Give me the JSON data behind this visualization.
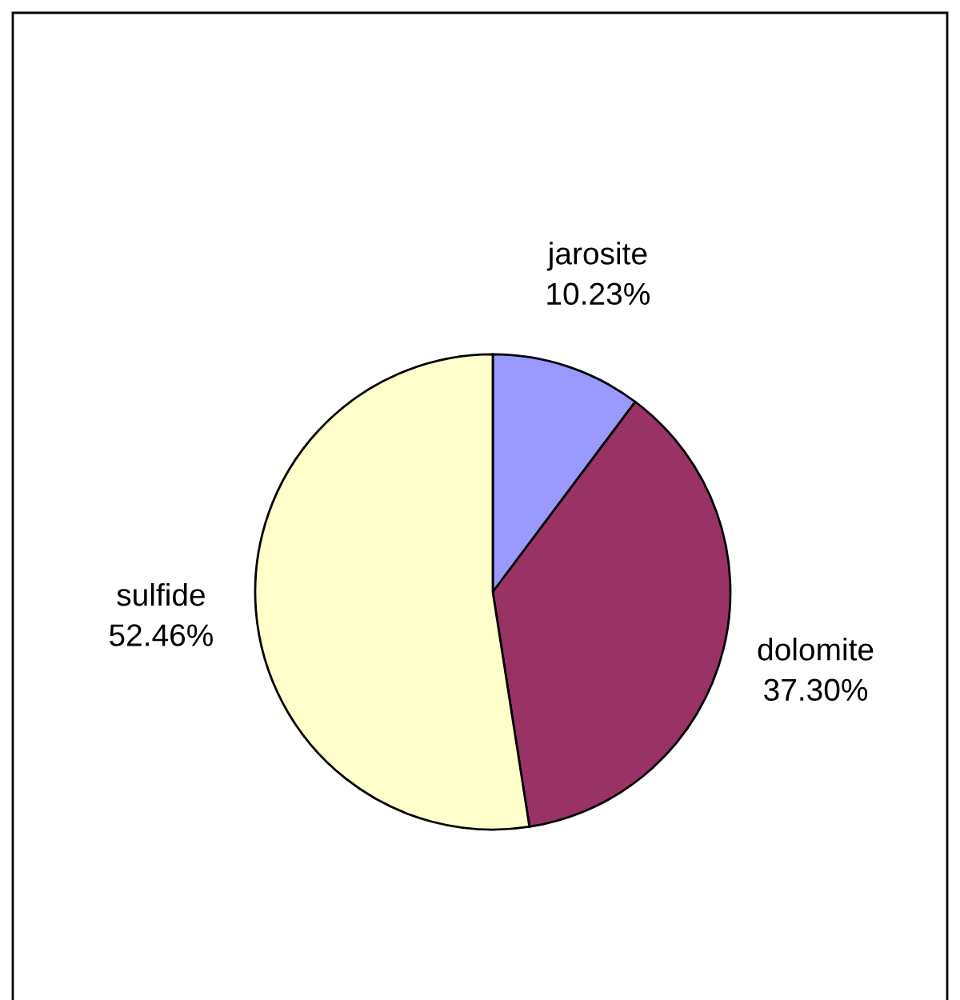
{
  "chart_data": {
    "type": "pie",
    "categories": [
      "jarosite",
      "dolomite",
      "sulfide"
    ],
    "values": [
      10.23,
      37.3,
      52.46
    ],
    "value_labels": [
      "10.23%",
      "37.30%",
      "52.46%"
    ],
    "colors": [
      "#9999ff",
      "#993366",
      "#ffffcc"
    ],
    "legend": false
  }
}
